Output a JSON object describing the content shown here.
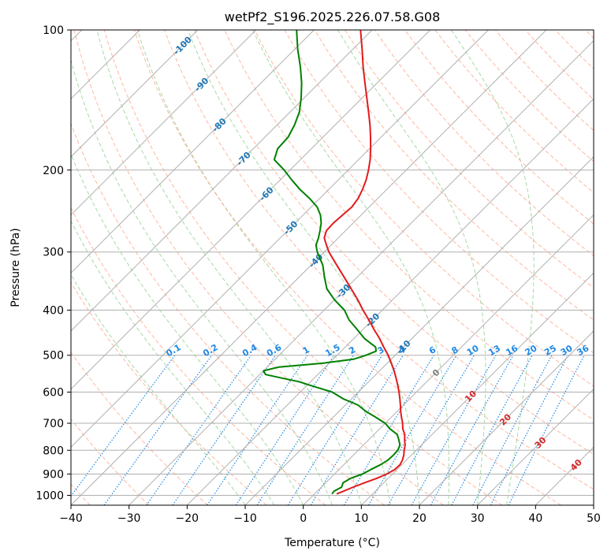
{
  "chart_data": {
    "type": "line",
    "subtype": "skew-t log-p diagram",
    "title": "wetPf2_S196.2025.226.07.58.G08",
    "xlabel": "Temperature (°C)",
    "ylabel": "Pressure (hPa)",
    "xlim": [
      -40,
      50
    ],
    "ylim": [
      1050,
      100
    ],
    "y_scale": "log",
    "grid": true,
    "x_ticks": [
      -40,
      -30,
      -20,
      -10,
      0,
      10,
      20,
      30,
      40,
      50
    ],
    "x_tick_labels": [
      "−40",
      "−30",
      "−20",
      "−10",
      "0",
      "10",
      "20",
      "30",
      "40",
      "50"
    ],
    "y_ticks": [
      100,
      200,
      300,
      400,
      500,
      600,
      700,
      800,
      900,
      1000
    ],
    "y_tick_labels": [
      "100",
      "200",
      "300",
      "400",
      "500",
      "600",
      "700",
      "800",
      "900",
      "1000"
    ],
    "colors": {
      "temperature": "#e31a1c",
      "dewpoint": "#008000",
      "grid": "#b0b0b0",
      "dry_adiabat": "#ff9f7f",
      "moist_adiabat": "#8fcf8f",
      "mixing_ratio": "#1e88e5",
      "isotherm_label": "#1f77b4",
      "isotherm_label_warm": "#d62728",
      "zero_label": "#7f7f7f"
    },
    "series": [
      {
        "name": "Temperature",
        "pressure": [
          993,
          980,
          960,
          940,
          920,
          900,
          880,
          860,
          840,
          820,
          800,
          780,
          760,
          740,
          720,
          700,
          680,
          660,
          640,
          620,
          600,
          580,
          560,
          540,
          520,
          500,
          480,
          460,
          440,
          420,
          400,
          380,
          360,
          340,
          320,
          300,
          290,
          280,
          270,
          260,
          250,
          240,
          230,
          220,
          210,
          200,
          190,
          180,
          170,
          160,
          150,
          140,
          130,
          120,
          110,
          100
        ],
        "temperature": [
          3.8,
          4.5,
          5.5,
          6.7,
          8.0,
          9.0,
          9.6,
          9.7,
          9.3,
          8.7,
          7.9,
          7.2,
          6.2,
          5.3,
          4.0,
          3.0,
          1.8,
          0.6,
          -0.5,
          -1.7,
          -3.0,
          -4.4,
          -5.9,
          -7.5,
          -9.3,
          -11.2,
          -13.4,
          -15.6,
          -18.1,
          -20.6,
          -23.3,
          -26.0,
          -29.0,
          -32.2,
          -35.6,
          -39.2,
          -40.8,
          -42.4,
          -43.3,
          -43.4,
          -43.2,
          -43.0,
          -43.4,
          -44.2,
          -45.2,
          -46.5,
          -48.0,
          -49.8,
          -51.8,
          -54.0,
          -56.5,
          -59.2,
          -62.1,
          -65.2,
          -68.4,
          -72.0
        ]
      },
      {
        "name": "Dewpoint",
        "pressure": [
          993,
          980,
          960,
          940,
          920,
          900,
          880,
          860,
          840,
          820,
          800,
          780,
          760,
          740,
          720,
          700,
          680,
          660,
          640,
          620,
          600,
          580,
          570,
          560,
          550,
          540,
          530,
          520,
          510,
          500,
          490,
          480,
          470,
          460,
          440,
          420,
          400,
          380,
          360,
          340,
          320,
          300,
          290,
          280,
          270,
          260,
          250,
          240,
          230,
          220,
          210,
          200,
          190,
          180,
          170,
          160,
          150,
          140,
          130,
          120,
          110,
          100
        ],
        "temperature": [
          3.0,
          2.9,
          3.5,
          3.0,
          3.5,
          4.8,
          5.5,
          6.3,
          6.8,
          6.9,
          6.8,
          6.3,
          5.2,
          4.0,
          1.8,
          0.0,
          -2.6,
          -5.4,
          -7.8,
          -11.5,
          -14.5,
          -19.5,
          -22.0,
          -25.5,
          -29.0,
          -30.0,
          -28.0,
          -21.0,
          -16.5,
          -15.0,
          -14.0,
          -14.8,
          -16.5,
          -18.2,
          -21.0,
          -24.0,
          -26.5,
          -30.0,
          -33.2,
          -35.6,
          -38.0,
          -41.2,
          -42.6,
          -43.4,
          -44.4,
          -45.5,
          -47.0,
          -49.0,
          -51.8,
          -55.0,
          -58.0,
          -61.0,
          -64.5,
          -65.8,
          -66.0,
          -67.0,
          -68.4,
          -70.5,
          -73.0,
          -76.0,
          -79.5,
          -83.0
        ]
      }
    ],
    "isotherm_labels": [
      {
        "label": "-100",
        "value": -100,
        "pressure": 108
      },
      {
        "label": "-90",
        "value": -90,
        "pressure": 131
      },
      {
        "label": "-80",
        "value": -80,
        "pressure": 160
      },
      {
        "label": "-70",
        "value": -70,
        "pressure": 189
      },
      {
        "label": "-60",
        "value": -60,
        "pressure": 225
      },
      {
        "label": "-50",
        "value": -50,
        "pressure": 266
      },
      {
        "label": "-40",
        "value": -40,
        "pressure": 313
      },
      {
        "label": "-30",
        "value": -30,
        "pressure": 364
      },
      {
        "label": "-20",
        "value": -20,
        "pressure": 420
      },
      {
        "label": "-10",
        "value": -10,
        "pressure": 480
      },
      {
        "label": "0",
        "value": 0,
        "pressure": 545
      },
      {
        "label": "10",
        "value": 10,
        "pressure": 612
      },
      {
        "label": "20",
        "value": 20,
        "pressure": 687
      },
      {
        "label": "30",
        "value": 30,
        "pressure": 770
      },
      {
        "label": "40",
        "value": 40,
        "pressure": 860
      }
    ],
    "mixing_ratio_labels": [
      "0.1",
      "0.2",
      "0.4",
      "0.6",
      "1",
      "1.5",
      "2",
      "3",
      "4",
      "6",
      "8",
      "10",
      "13",
      "16",
      "20",
      "25",
      "30",
      "36"
    ],
    "mixing_ratio_values": [
      0.1,
      0.2,
      0.4,
      0.6,
      1,
      1.5,
      2,
      3,
      4,
      6,
      8,
      10,
      13,
      16,
      20,
      25,
      30,
      36
    ],
    "mixing_ratio_label_pressure": 500,
    "dry_adiabats_theta_c": [
      -40,
      -30,
      -20,
      -10,
      0,
      10,
      20,
      30,
      40,
      50,
      60,
      70,
      80,
      90,
      100,
      110,
      120,
      130,
      140,
      150,
      160,
      170,
      180,
      190,
      200
    ],
    "moist_adiabats_start_c": [
      -10,
      -5,
      0,
      5,
      10,
      15,
      20,
      25,
      30,
      35
    ]
  }
}
